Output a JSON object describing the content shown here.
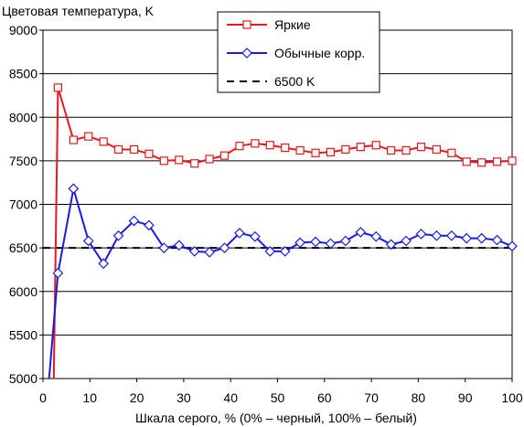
{
  "chart_data": {
    "type": "line",
    "title": "",
    "ylabel": "Цветовая температура, K",
    "xlabel": "Шкала серого, % (0% – черный, 100% – белый)",
    "xlim": [
      0,
      100
    ],
    "ylim": [
      5000,
      9000
    ],
    "xticks": [
      0,
      10,
      20,
      30,
      40,
      50,
      60,
      70,
      80,
      90,
      100
    ],
    "yticks": [
      5000,
      5500,
      6000,
      6500,
      7000,
      7500,
      8000,
      8500,
      9000
    ],
    "grid": "horizontal",
    "legend_position": "top-center",
    "series": [
      {
        "name": "Яркие",
        "color": "#e8181e",
        "marker": "square",
        "x": [
          2.3,
          3.2,
          6.5,
          9.7,
          12.9,
          16.1,
          19.4,
          22.6,
          25.8,
          29.0,
          32.3,
          35.5,
          38.7,
          41.9,
          45.2,
          48.4,
          51.6,
          54.8,
          58.1,
          61.3,
          64.5,
          67.7,
          71.0,
          74.2,
          77.4,
          80.6,
          83.9,
          87.1,
          90.3,
          93.5,
          96.8,
          100
        ],
        "y": [
          5000,
          8340,
          7740,
          7780,
          7720,
          7630,
          7630,
          7580,
          7500,
          7510,
          7470,
          7520,
          7560,
          7670,
          7700,
          7680,
          7650,
          7620,
          7590,
          7600,
          7630,
          7660,
          7680,
          7620,
          7620,
          7660,
          7630,
          7590,
          7490,
          7480,
          7490,
          7500
        ]
      },
      {
        "name": "Обычные корр.",
        "color": "#1a1ae6",
        "marker": "diamond",
        "x": [
          1.3,
          3.2,
          6.5,
          9.7,
          12.9,
          16.1,
          19.4,
          22.6,
          25.8,
          29.0,
          32.3,
          35.5,
          38.7,
          41.9,
          45.2,
          48.4,
          51.6,
          54.8,
          58.1,
          61.3,
          64.5,
          67.7,
          71.0,
          74.2,
          77.4,
          80.6,
          83.9,
          87.1,
          90.3,
          93.5,
          96.8,
          100
        ],
        "y": [
          5000,
          6210,
          7180,
          6580,
          6320,
          6640,
          6810,
          6760,
          6500,
          6530,
          6460,
          6450,
          6500,
          6670,
          6630,
          6460,
          6460,
          6560,
          6570,
          6550,
          6580,
          6680,
          6630,
          6540,
          6580,
          6660,
          6640,
          6640,
          6610,
          6610,
          6590,
          6520
        ]
      },
      {
        "name": "6500 K",
        "color": "#000000",
        "style": "dashed",
        "x": [
          0,
          100
        ],
        "y": [
          6500,
          6500
        ]
      }
    ]
  }
}
